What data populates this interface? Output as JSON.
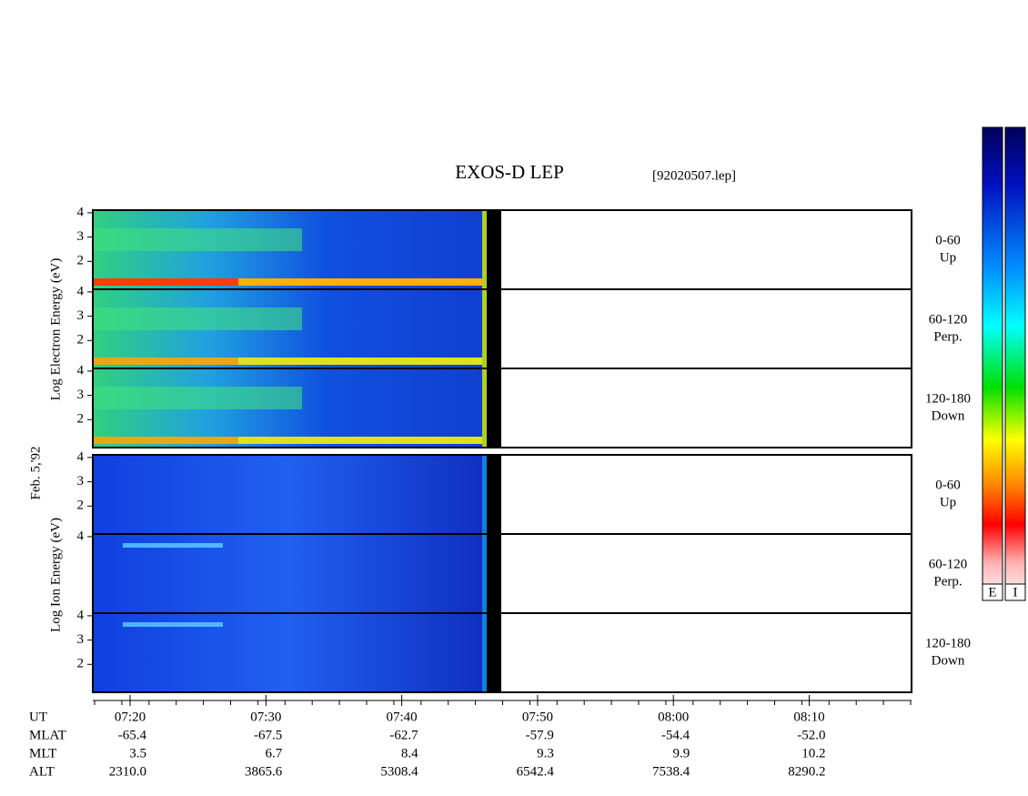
{
  "title": "EXOS-D LEP",
  "file": "[92020507.lep]",
  "date": "Feb. 5,'92",
  "electron": {
    "axis_label": "Log Electron Energy (eV)",
    "panels": [
      {
        "range": "0-60",
        "direction": "Up",
        "yticks": [
          2,
          3,
          4
        ]
      },
      {
        "range": "60-120",
        "direction": "Perp.",
        "yticks": [
          2,
          3,
          4
        ]
      },
      {
        "range": "120-180",
        "direction": "Down",
        "yticks": [
          2,
          3,
          4
        ]
      }
    ]
  },
  "ion": {
    "axis_label": "Log Ion Energy (eV)",
    "panels": [
      {
        "range": "0-60",
        "direction": "Up",
        "yticks": [
          2,
          3,
          4
        ]
      },
      {
        "range": "60-120",
        "direction": "Perp.",
        "yticks": [
          4
        ]
      },
      {
        "range": "120-180",
        "direction": "Down",
        "yticks": [
          2,
          3,
          4
        ]
      }
    ]
  },
  "time_axis": {
    "rows": [
      {
        "label": "UT",
        "values": [
          "07:20",
          "07:30",
          "07:40",
          "07:50",
          "08:00",
          "08:10"
        ]
      },
      {
        "label": "MLAT",
        "values": [
          "-65.4",
          "-67.5",
          "-62.7",
          "-57.9",
          "-54.4",
          "-52.0"
        ]
      },
      {
        "label": "MLT",
        "values": [
          "3.5",
          "6.7",
          "8.4",
          "9.3",
          "9.9",
          "10.2"
        ]
      },
      {
        "label": "ALT",
        "values": [
          "2310.0",
          "3865.6",
          "5308.4",
          "6542.4",
          "7538.4",
          "8290.2"
        ]
      }
    ]
  },
  "colorbar_labels": [
    "E",
    "I"
  ]
}
